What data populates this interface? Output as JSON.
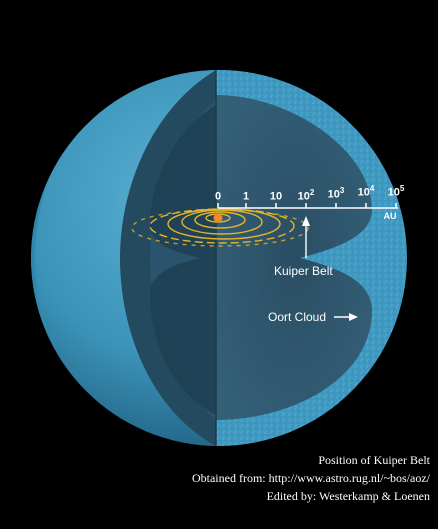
{
  "diagram": {
    "scale": {
      "ticks": [
        {
          "base": "0",
          "exp": ""
        },
        {
          "base": "1",
          "exp": ""
        },
        {
          "base": "10",
          "exp": ""
        },
        {
          "base": "10",
          "exp": "2"
        },
        {
          "base": "10",
          "exp": "3"
        },
        {
          "base": "10",
          "exp": "4"
        },
        {
          "base": "10",
          "exp": "5"
        }
      ],
      "unit": "AU"
    },
    "labels": {
      "kuiper": "Kuiper Belt",
      "oort": "Oort Cloud"
    },
    "colors": {
      "sphere": "#3b93b8",
      "interior": "#2e566c",
      "belt": "#e5b42a",
      "sun": "#f08a24"
    }
  },
  "caption": {
    "line1": "Position of Kuiper Belt",
    "line2": "Obtained from: http://www.astro.rug.nl/~bos/aoz/",
    "line3": "Edited by: Westerkamp & Loenen"
  }
}
